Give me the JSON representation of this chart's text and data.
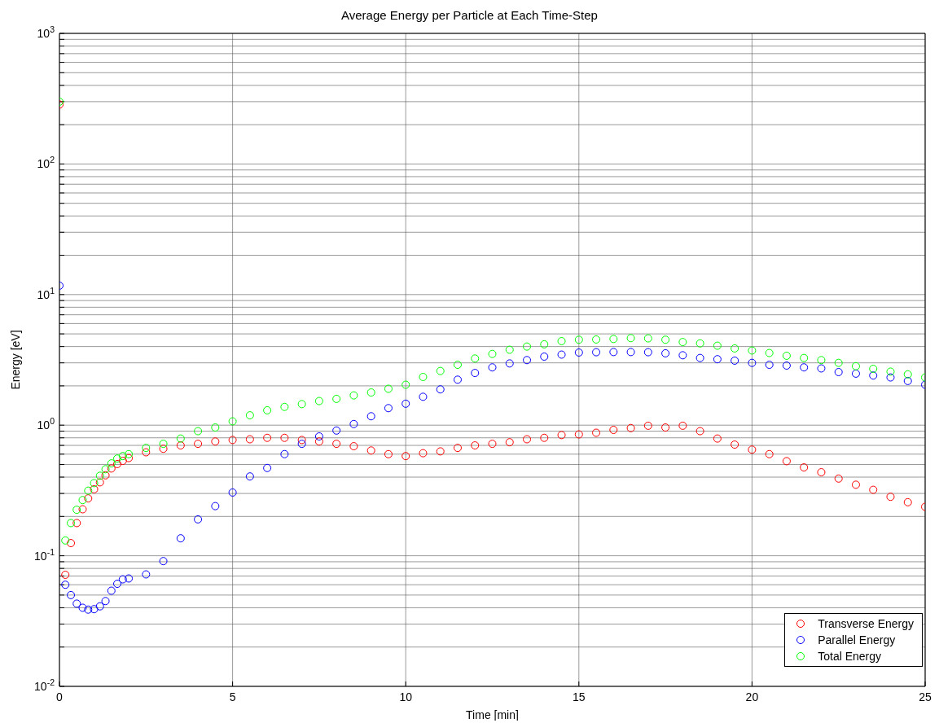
{
  "chart_data": {
    "type": "scatter",
    "title": "Average Energy per Particle at Each Time-Step",
    "xlabel": "Time  [min]",
    "ylabel": "Energy  [eV]",
    "x": [
      0,
      0.17,
      0.33,
      0.5,
      0.67,
      0.83,
      1,
      1.17,
      1.33,
      1.5,
      1.67,
      1.83,
      2,
      2.5,
      3,
      3.5,
      4,
      4.5,
      5,
      5.5,
      6,
      6.5,
      7,
      7.5,
      8,
      8.5,
      9,
      9.5,
      10,
      10.5,
      11,
      11.5,
      12,
      12.5,
      13,
      13.5,
      14,
      14.5,
      15,
      15.5,
      16,
      16.5,
      17,
      17.5,
      18,
      18.5,
      19,
      19.5,
      20,
      20.5,
      21,
      21.5,
      22,
      22.5,
      23,
      23.5,
      24,
      24.5,
      25
    ],
    "series": [
      {
        "name": "Transverse Energy",
        "color": "#ff0000",
        "values": [
          285,
          0.0715,
          0.125,
          0.178,
          0.227,
          0.275,
          0.323,
          0.365,
          0.413,
          0.466,
          0.504,
          0.533,
          0.56,
          0.62,
          0.66,
          0.7,
          0.72,
          0.75,
          0.77,
          0.78,
          0.8,
          0.8,
          0.77,
          0.75,
          0.72,
          0.69,
          0.64,
          0.6,
          0.58,
          0.61,
          0.63,
          0.67,
          0.7,
          0.72,
          0.74,
          0.78,
          0.8,
          0.84,
          0.85,
          0.875,
          0.92,
          0.95,
          0.99,
          0.96,
          0.99,
          0.9,
          0.79,
          0.71,
          0.65,
          0.6,
          0.53,
          0.475,
          0.436,
          0.39,
          0.35,
          0.32,
          0.283,
          0.257,
          0.237
        ]
      },
      {
        "name": "Parallel Energy",
        "color": "#0000ff",
        "values": [
          11.7,
          0.06,
          0.05,
          0.043,
          0.04,
          0.0387,
          0.039,
          0.041,
          0.045,
          0.054,
          0.061,
          0.066,
          0.067,
          0.072,
          0.091,
          0.136,
          0.19,
          0.24,
          0.305,
          0.405,
          0.47,
          0.6,
          0.72,
          0.82,
          0.91,
          1.02,
          1.17,
          1.35,
          1.46,
          1.65,
          1.88,
          2.23,
          2.51,
          2.77,
          2.97,
          3.15,
          3.35,
          3.47,
          3.6,
          3.62,
          3.63,
          3.63,
          3.62,
          3.55,
          3.43,
          3.27,
          3.2,
          3.12,
          3,
          2.9,
          2.86,
          2.77,
          2.72,
          2.55,
          2.48,
          2.4,
          2.32,
          2.18,
          2.04
        ]
      },
      {
        "name": "Total Energy",
        "color": "#00ff00",
        "values": [
          300,
          0.131,
          0.178,
          0.225,
          0.267,
          0.315,
          0.36,
          0.41,
          0.46,
          0.51,
          0.555,
          0.58,
          0.6,
          0.67,
          0.72,
          0.79,
          0.9,
          0.96,
          1.07,
          1.19,
          1.3,
          1.38,
          1.45,
          1.53,
          1.59,
          1.69,
          1.78,
          1.9,
          2.04,
          2.34,
          2.6,
          2.9,
          3.24,
          3.51,
          3.78,
          4,
          4.16,
          4.4,
          4.51,
          4.53,
          4.57,
          4.64,
          4.62,
          4.51,
          4.33,
          4.23,
          4.06,
          3.87,
          3.73,
          3.57,
          3.4,
          3.27,
          3.15,
          3,
          2.83,
          2.7,
          2.57,
          2.45,
          2.32
        ]
      }
    ],
    "xlim": [
      0,
      25
    ],
    "xticks": [
      0,
      5,
      10,
      15,
      20,
      25
    ],
    "ylim": [
      0.01,
      1000
    ],
    "yticks": [
      {
        "value": 0.01,
        "label": "10$^{-2}$"
      },
      {
        "value": 0.02,
        "label": null
      },
      {
        "value": 0.03,
        "label": null
      },
      {
        "value": 0.04,
        "label": null
      },
      {
        "value": 0.05,
        "label": null
      },
      {
        "value": 0.06,
        "label": null
      },
      {
        "value": 0.07,
        "label": null
      },
      {
        "value": 0.08,
        "label": null
      },
      {
        "value": 0.09,
        "label": null
      },
      {
        "value": 0.1,
        "label": "10$^{-1}$"
      },
      {
        "value": 0.2,
        "label": null
      },
      {
        "value": 0.3,
        "label": null
      },
      {
        "value": 0.4,
        "label": null
      },
      {
        "value": 0.5,
        "label": null
      },
      {
        "value": 0.6,
        "label": null
      },
      {
        "value": 0.7,
        "label": null
      },
      {
        "value": 0.8,
        "label": null
      },
      {
        "value": 0.9,
        "label": null
      },
      {
        "value": 1,
        "label": "10$^{0}$"
      },
      {
        "value": 2,
        "label": null
      },
      {
        "value": 3,
        "label": null
      },
      {
        "value": 4,
        "label": null
      },
      {
        "value": 5,
        "label": null
      },
      {
        "value": 6,
        "label": null
      },
      {
        "value": 7,
        "label": null
      },
      {
        "value": 8,
        "label": null
      },
      {
        "value": 9,
        "label": null
      },
      {
        "value": 10,
        "label": "10$^{1}$"
      },
      {
        "value": 20,
        "label": null
      },
      {
        "value": 30,
        "label": null
      },
      {
        "value": 40,
        "label": null
      },
      {
        "value": 50,
        "label": null
      },
      {
        "value": 60,
        "label": null
      },
      {
        "value": 70,
        "label": null
      },
      {
        "value": 80,
        "label": null
      },
      {
        "value": 90,
        "label": null
      },
      {
        "value": 100,
        "label": "10$^{2}$"
      },
      {
        "value": 200,
        "label": null
      },
      {
        "value": 300,
        "label": null
      },
      {
        "value": 400,
        "label": null
      },
      {
        "value": 500,
        "label": null
      },
      {
        "value": 600,
        "label": null
      },
      {
        "value": 700,
        "label": null
      },
      {
        "value": 800,
        "label": null
      },
      {
        "value": 900,
        "label": null
      },
      {
        "value": 1000,
        "label": "10$^{3}$"
      }
    ],
    "log": "y",
    "grid": true,
    "legend": "bottom right",
    "marker": "circle"
  }
}
